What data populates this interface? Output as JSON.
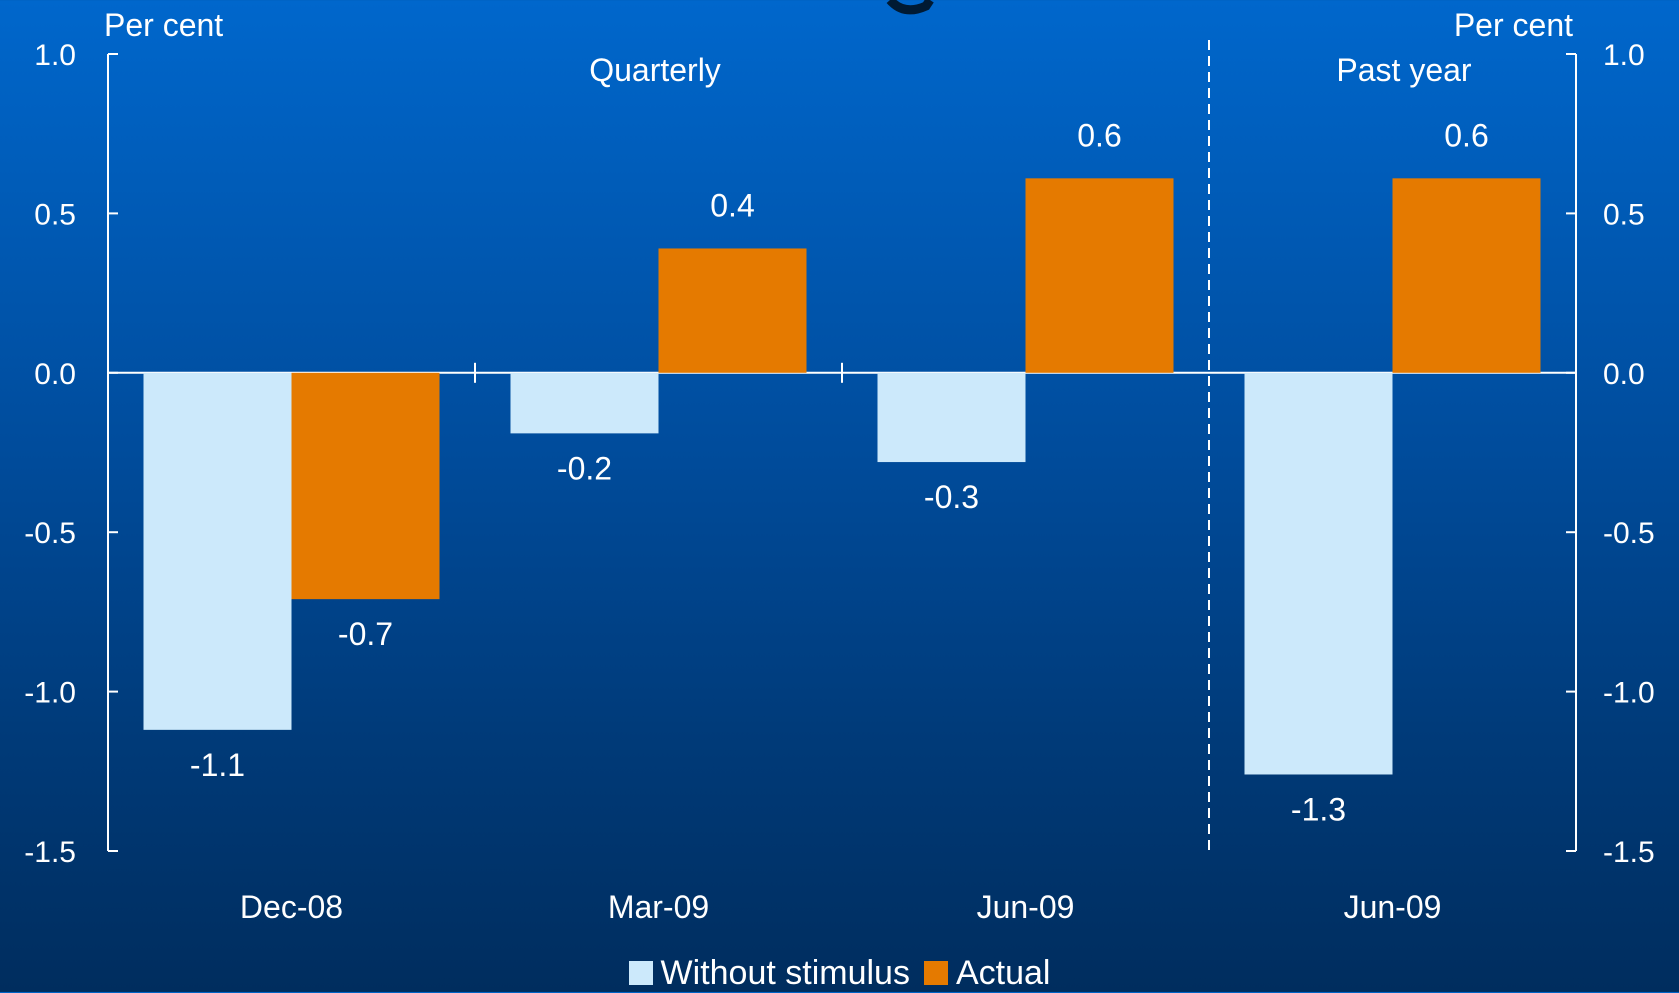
{
  "chart_data": {
    "type": "bar",
    "left_axis_label": "Per cent",
    "right_axis_label": "Per cent",
    "ylim": [
      -1.5,
      1.0
    ],
    "y_ticks": [
      "1.0",
      "0.5",
      "0.0",
      "-0.5",
      "-1.0",
      "-1.5"
    ],
    "y_tick_values": [
      1.0,
      0.5,
      0.0,
      -0.5,
      -1.0,
      -1.5
    ],
    "panels": [
      {
        "label": "Quarterly",
        "categories": [
          "Dec-08",
          "Mar-09",
          "Jun-09"
        ]
      },
      {
        "label": "Past year",
        "categories": [
          "Jun-09"
        ]
      }
    ],
    "categories": [
      "Dec-08",
      "Mar-09",
      "Jun-09",
      "Jun-09"
    ],
    "series": [
      {
        "name": "Without stimulus",
        "color": "#cce9fb",
        "values": [
          -1.12,
          -0.19,
          -0.28,
          -1.26
        ],
        "labels": [
          "-1.1",
          "-0.2",
          "-0.3",
          "-1.3"
        ]
      },
      {
        "name": "Actual",
        "color": "#e57a00",
        "values": [
          -0.71,
          0.39,
          0.61,
          0.61
        ],
        "labels": [
          "-0.7",
          "0.4",
          "0.6",
          "0.6"
        ]
      }
    ],
    "grid": false,
    "legend_position": "bottom"
  }
}
